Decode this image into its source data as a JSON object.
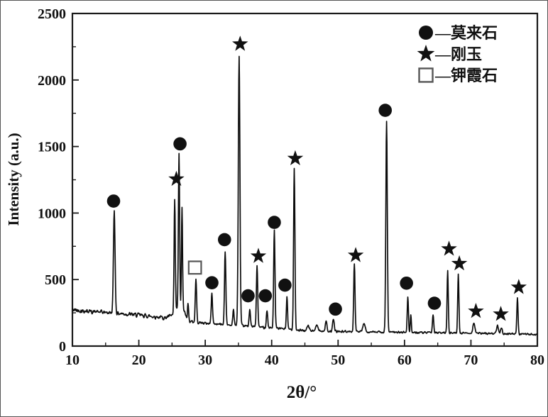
{
  "figure": {
    "background": "#ffffff",
    "frame_color": "#1a1a1a",
    "curve_color": "#0d0d0d",
    "marker_color": "#111111",
    "square_marker_stroke": "#555555"
  },
  "legend": {
    "position": "top-right",
    "items": [
      {
        "marker": "circle",
        "glyph": "●",
        "label": "—莫来石",
        "mineral": "mullite"
      },
      {
        "marker": "star",
        "glyph": "★",
        "label": "—刚玉",
        "mineral": "corundum"
      },
      {
        "marker": "square",
        "glyph": "□",
        "label": "—钾霞石",
        "mineral": "kalsilite"
      }
    ]
  },
  "chart_data": {
    "type": "line",
    "title": "",
    "xlabel": "2θ/°",
    "ylabel": "Intensity (a.u.)",
    "xlim": [
      10,
      80
    ],
    "ylim": [
      0,
      2500
    ],
    "x_ticks": [
      10,
      20,
      30,
      40,
      50,
      60,
      70,
      80
    ],
    "x_minor_step": 5,
    "y_ticks": [
      0,
      500,
      1000,
      1500,
      2000,
      2500
    ],
    "y_minor_step": 250,
    "grid": false,
    "series_name": "XRD pattern",
    "baseline_points": [
      [
        10,
        272
      ],
      [
        12,
        264
      ],
      [
        14,
        256
      ],
      [
        16,
        250
      ],
      [
        18,
        241
      ],
      [
        20,
        233
      ],
      [
        22,
        223
      ],
      [
        24,
        213
      ],
      [
        25.2,
        235
      ],
      [
        25.9,
        295
      ],
      [
        26.7,
        285
      ],
      [
        27.3,
        195
      ],
      [
        28,
        182
      ],
      [
        30,
        172
      ],
      [
        32,
        165
      ],
      [
        34,
        158
      ],
      [
        36,
        150
      ],
      [
        38,
        144
      ],
      [
        40,
        136
      ],
      [
        42,
        130
      ],
      [
        43.2,
        124
      ],
      [
        44.5,
        117
      ],
      [
        46,
        113
      ],
      [
        48,
        112
      ],
      [
        50,
        110
      ],
      [
        52,
        108
      ],
      [
        54,
        107
      ],
      [
        56,
        105
      ],
      [
        58,
        104
      ],
      [
        60,
        103
      ],
      [
        62,
        101
      ],
      [
        64,
        100
      ],
      [
        66,
        99
      ],
      [
        68,
        99
      ],
      [
        70,
        97
      ],
      [
        72,
        95
      ],
      [
        74,
        94
      ],
      [
        76,
        92
      ],
      [
        78,
        90
      ],
      [
        80,
        87
      ]
    ],
    "noise_amplitude_points": [
      [
        10,
        22
      ],
      [
        24,
        20
      ],
      [
        26,
        15
      ],
      [
        30,
        14
      ],
      [
        36,
        13
      ],
      [
        44,
        12
      ],
      [
        50,
        11
      ],
      [
        60,
        10
      ],
      [
        70,
        9
      ],
      [
        80,
        9
      ]
    ],
    "peaks": [
      {
        "two_theta": 16.3,
        "intensity": 1020,
        "sigma": 0.12,
        "phase": "mullite",
        "marker": "circle",
        "marker_x": 16.2,
        "marker_y": 1090
      },
      {
        "two_theta": 25.4,
        "intensity": 1100,
        "sigma": 0.09,
        "phase": "corundum",
        "marker": "star",
        "marker_x": 25.65,
        "marker_y": 1255
      },
      {
        "two_theta": 26.05,
        "intensity": 1445,
        "sigma": 0.09,
        "phase": "mullite",
        "marker": "circle",
        "marker_x": 26.2,
        "marker_y": 1520
      },
      {
        "two_theta": 26.5,
        "intensity": 1040,
        "sigma": 0.08,
        "phase": null
      },
      {
        "two_theta": 27.4,
        "intensity": 330,
        "sigma": 0.08,
        "phase": null
      },
      {
        "two_theta": 28.6,
        "intensity": 505,
        "sigma": 0.1,
        "phase": "kalsilite",
        "marker": "square",
        "marker_x": 28.45,
        "marker_y": 590
      },
      {
        "two_theta": 31.0,
        "intensity": 395,
        "sigma": 0.1,
        "phase": "mullite",
        "marker": "circle",
        "marker_y": 476
      },
      {
        "two_theta": 33.0,
        "intensity": 713,
        "sigma": 0.1,
        "phase": "mullite",
        "marker": "circle",
        "marker_x": 32.9,
        "marker_y": 800
      },
      {
        "two_theta": 34.25,
        "intensity": 270,
        "sigma": 0.1,
        "phase": null
      },
      {
        "two_theta": 35.1,
        "intensity": 2180,
        "sigma": 0.12,
        "phase": "corundum",
        "marker": "star",
        "marker_x": 35.25,
        "marker_y": 2270
      },
      {
        "two_theta": 36.7,
        "intensity": 280,
        "sigma": 0.1,
        "phase": "mullite",
        "marker": "circle",
        "marker_x": 36.45,
        "marker_y": 378
      },
      {
        "two_theta": 37.8,
        "intensity": 605,
        "sigma": 0.1,
        "phase": "corundum",
        "marker": "star",
        "marker_x": 38.0,
        "marker_y": 676
      },
      {
        "two_theta": 39.3,
        "intensity": 270,
        "sigma": 0.1,
        "phase": "mullite",
        "marker": "circle",
        "marker_x": 39.05,
        "marker_y": 378
      },
      {
        "two_theta": 40.4,
        "intensity": 865,
        "sigma": 0.1,
        "phase": "mullite",
        "marker": "circle",
        "marker_y": 930
      },
      {
        "two_theta": 42.3,
        "intensity": 370,
        "sigma": 0.09,
        "phase": "mullite",
        "marker": "circle",
        "marker_x": 42.0,
        "marker_y": 458
      },
      {
        "two_theta": 43.4,
        "intensity": 1340,
        "sigma": 0.1,
        "phase": "corundum",
        "marker": "star",
        "marker_x": 43.55,
        "marker_y": 1410
      },
      {
        "two_theta": 45.5,
        "intensity": 150,
        "sigma": 0.18,
        "phase": null
      },
      {
        "two_theta": 46.8,
        "intensity": 168,
        "sigma": 0.15,
        "phase": null
      },
      {
        "two_theta": 48.2,
        "intensity": 188,
        "sigma": 0.12,
        "phase": null
      },
      {
        "two_theta": 49.3,
        "intensity": 200,
        "sigma": 0.12,
        "phase": "mullite",
        "marker": "circle",
        "marker_x": 49.6,
        "marker_y": 278
      },
      {
        "two_theta": 52.45,
        "intensity": 620,
        "sigma": 0.1,
        "phase": "corundum",
        "marker": "star",
        "marker_x": 52.65,
        "marker_y": 682
      },
      {
        "two_theta": 53.9,
        "intensity": 168,
        "sigma": 0.18,
        "phase": null
      },
      {
        "two_theta": 57.3,
        "intensity": 1690,
        "sigma": 0.11,
        "phase": "mullite",
        "marker": "circle",
        "marker_x": 57.1,
        "marker_y": 1772
      },
      {
        "two_theta": 60.5,
        "intensity": 370,
        "sigma": 0.09,
        "phase": "mullite",
        "marker": "circle",
        "marker_x": 60.3,
        "marker_y": 473
      },
      {
        "two_theta": 60.95,
        "intensity": 235,
        "sigma": 0.08,
        "phase": null
      },
      {
        "two_theta": 64.3,
        "intensity": 235,
        "sigma": 0.1,
        "phase": "mullite",
        "marker": "circle",
        "marker_x": 64.5,
        "marker_y": 322
      },
      {
        "two_theta": 66.5,
        "intensity": 570,
        "sigma": 0.09,
        "phase": "corundum",
        "marker": "star",
        "marker_x": 66.7,
        "marker_y": 730
      },
      {
        "two_theta": 68.1,
        "intensity": 545,
        "sigma": 0.09,
        "phase": "corundum",
        "marker": "star",
        "marker_x": 68.25,
        "marker_y": 620
      },
      {
        "two_theta": 70.45,
        "intensity": 175,
        "sigma": 0.15,
        "phase": "corundum",
        "marker": "star",
        "marker_x": 70.75,
        "marker_y": 262
      },
      {
        "two_theta": 74.0,
        "intensity": 160,
        "sigma": 0.14,
        "phase": null
      },
      {
        "two_theta": 74.6,
        "intensity": 138,
        "sigma": 0.12,
        "phase": "corundum",
        "marker": "star",
        "marker_x": 74.5,
        "marker_y": 240
      },
      {
        "two_theta": 77.0,
        "intensity": 365,
        "sigma": 0.09,
        "phase": "corundum",
        "marker": "star",
        "marker_x": 77.2,
        "marker_y": 442
      }
    ]
  }
}
